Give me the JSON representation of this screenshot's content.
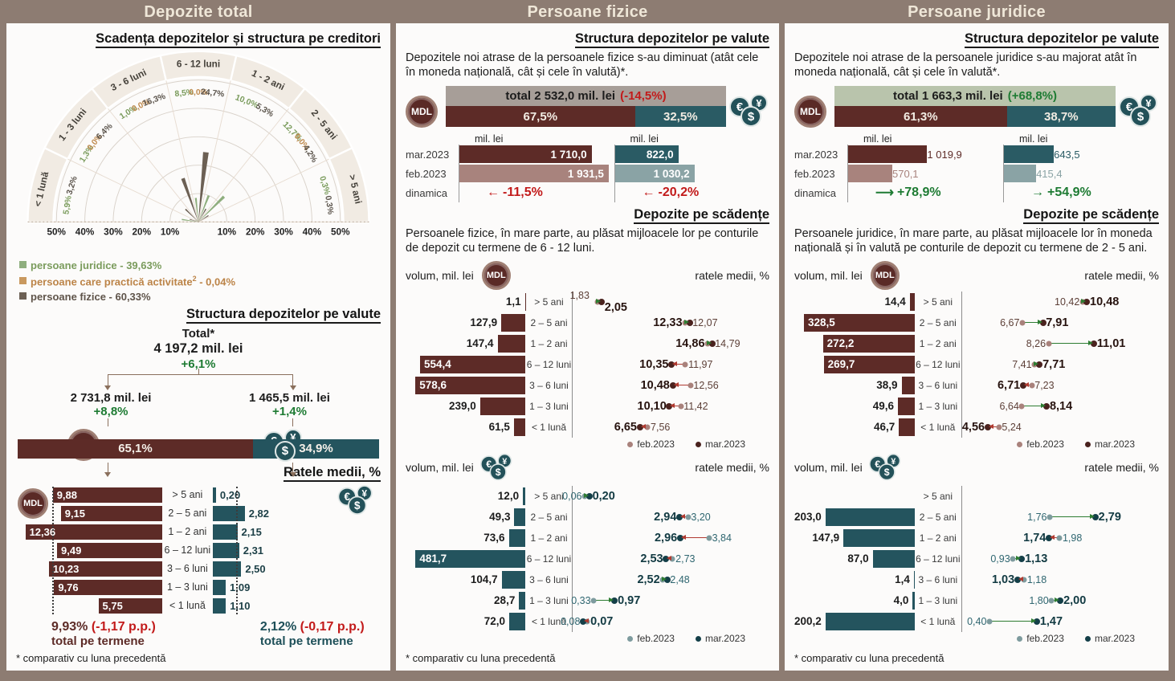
{
  "headers": [
    "Depozite total",
    "Persoane fizice",
    "Persoane juridice"
  ],
  "footnote": "* comparativ cu luna precedentă",
  "legend_months": {
    "feb": "feb.2023",
    "mar": "mar.2023"
  },
  "labels": {
    "volume": "volum, mil. lei",
    "rates": "ratele medii, %",
    "unit": "mil. lei",
    "total_term": "total pe termene"
  },
  "icons": {
    "mdl": "MDL",
    "eur": "€",
    "yen": "¥",
    "usd": "$"
  },
  "panel1": {
    "title_radial": "Scadența depozitelor și structura pe creditori",
    "title_valute": "Structura depozitelor pe valute",
    "title_rates": "Ratele medii, %"
  },
  "panel2": {
    "title_valute": "Structura depozitelor pe valute",
    "intro": "Depozitele noi atrase de la persoanele fizice s-au diminuat (atât cele în moneda națională, cât și cele în valută)*.",
    "title_maturity": "Depozite pe scădențe",
    "maturity_intro": "Persoanele fizice, în mare parte, au plăsat mijloacele lor pe conturile de depozit cu termene de 6 - 12 luni."
  },
  "panel3": {
    "title_valute": "Structura depozitelor pe valute",
    "intro": "Depozitele noi atrase de la persoanele juridice s-au majorat atât în moneda națională, cât și cele în valută*.",
    "title_maturity": "Depozite pe scădențe",
    "maturity_intro": "Persoanele juridice, în mare parte, au plăsat mijloacele lor în moneda națională și în valută pe conturile de depozit cu termene de 2 - 5 ani."
  },
  "chart_data": [
    {
      "id": "maturity-structure-radial",
      "type": "polar-bar",
      "title": "Scadența depozitelor și structura pe creditori",
      "categories": [
        "< 1 lună",
        "1 - 3 luni",
        "3 - 6 luni",
        "6 - 12 luni",
        "1 - 2 ani",
        "2 - 5 ani",
        "> 5 ani"
      ],
      "rmax": 50,
      "axis_ticks": [
        "50%",
        "40%",
        "30%",
        "20%",
        "10%"
      ],
      "series": [
        {
          "name": "persoane juridice",
          "color": "#8fae7e",
          "label_color": "#7b9c5d",
          "values": [
            5.9,
            1.3,
            1.0,
            8.5,
            10.0,
            12.7,
            0.3
          ],
          "labels": [
            "5,9%",
            "1,3%",
            "1,0%",
            "8,5%",
            "10,0%",
            "12,7%",
            "0,3%"
          ]
        },
        {
          "name": "persoane care practică activitate",
          "color": "#c9995f",
          "label_color": "#c08b4f",
          "values": [
            null,
            0.0,
            0.0,
            0.0,
            null,
            0.0,
            null
          ],
          "labels": [
            null,
            "0,0%",
            "0,0%",
            "0,0%",
            null,
            "0,0%",
            null
          ]
        },
        {
          "name": "persoane fizice",
          "color": "#6c6054",
          "label_color": "#5b544c",
          "values": [
            3.2,
            6.4,
            16.3,
            24.7,
            5.3,
            4.2,
            0.3
          ],
          "labels": [
            "3,2%",
            "6,4%",
            "16,3%",
            "24,7%",
            "5,3%",
            "4,2%",
            "0,3%"
          ]
        }
      ],
      "legend": [
        {
          "color": "#8fae7e",
          "text_color": "#7b9c5d",
          "text": "persoane juridice - 39,63%"
        },
        {
          "color": "#c9995f",
          "text_color": "#bc8448",
          "text": "persoane care practică activitate",
          "sup": "2",
          "suffix": " - 0,04%"
        },
        {
          "color": "#6c6054",
          "text_color": "#5f544a",
          "text": "persoane fizice - 60,33%"
        }
      ]
    },
    {
      "id": "total-structure-tree",
      "type": "tree",
      "total_title": "Total*",
      "total_value": "4 197,2 mil. lei",
      "total_delta": "+6,1%",
      "left": {
        "value": "2 731,8 mil. lei",
        "delta": "+8,8%",
        "label": "în lei",
        "share": "65,1%",
        "share_pct": 65.1,
        "color": "#5d2b27"
      },
      "right": {
        "value": "1 465,5 mil. lei",
        "delta": "+1,4%",
        "label": "în valută",
        "share": "34,9%",
        "share_pct": 34.9,
        "color": "#24545e"
      }
    },
    {
      "id": "avg-rates-total",
      "type": "tornado",
      "scale_max": 13.2,
      "categories": [
        "> 5 ani",
        "2 – 5 ani",
        "1 – 2 ani",
        "6 – 12 luni",
        "3 – 6 luni",
        "1 – 3 luni",
        "< 1 lună"
      ],
      "left": {
        "color": "#5d2b27",
        "values": [
          9.88,
          9.15,
          12.36,
          9.49,
          10.23,
          9.76,
          5.75
        ],
        "labels": [
          "9,88",
          "9,15",
          "12,36",
          "9,49",
          "10,23",
          "9,76",
          "5,75"
        ],
        "ref": 9.93,
        "total": "9,93%",
        "total_delta": "(-1,17 p.p.)",
        "total_caption": "total pe termene",
        "total_color": "#5d2b27"
      },
      "right": {
        "color": "#24545e",
        "values": [
          0.2,
          2.82,
          2.15,
          2.31,
          2.5,
          1.09,
          1.1
        ],
        "labels": [
          "0,20",
          "2,82",
          "2,15",
          "2,31",
          "2,50",
          "1,09",
          "1,10"
        ],
        "ref": 2.12,
        "total": "2,12%",
        "total_delta": "(-0,17 p.p.)",
        "total_caption": "total pe termene",
        "total_color": "#1d4f58"
      }
    },
    {
      "id": "pf-new-deposits",
      "type": "grouped-bar",
      "total_label": "total 2 532,0 mil. lei",
      "total_delta": "(-14,5%)",
      "delta_color": "#c21a1a",
      "total_bar_color": "#a79e98",
      "split": {
        "mdl_label": "67,5%",
        "mdl_pct": 67.5,
        "val_label": "32,5%",
        "val_pct": 32.5
      },
      "unit": "mil. lei",
      "row_labels": [
        "mar.2023",
        "feb.2023",
        "dinamica"
      ],
      "labels_inside": true,
      "scale_max": 2000,
      "mdl": {
        "mar": 1710.0,
        "mar_label": "1 710,0",
        "mar_color": "#5d2b27",
        "feb": 1931.5,
        "feb_label": "1 931,5",
        "feb_color": "#a8837d",
        "dyn": "-11,5%",
        "dyn_arrow": "←",
        "dyn_color": "#c21a1a"
      },
      "val": {
        "mar": 822.0,
        "mar_label": "822,0",
        "mar_color": "#2a5b64",
        "feb": 1030.2,
        "feb_label": "1 030,2",
        "feb_color": "#8aa3a5",
        "dyn": "-20,2%",
        "dyn_arrow": "←",
        "dyn_color": "#c21a1a"
      }
    },
    {
      "id": "pf-maturity-mdl",
      "type": "bar-dumbbell",
      "bar_color": "#5d2b27",
      "dot_feb": "#a9827c",
      "dot_mar": "#4a221e",
      "feb_text": "#5d4038",
      "mar_text": "#27130f",
      "vmax": 630,
      "rmin": 0,
      "rmax": 16.5,
      "rows": [
        {
          "cat": "> 5 ani",
          "vol": 1.1,
          "vol_label": "1,1",
          "inside": false,
          "feb": 1.83,
          "feb_label": "1,83",
          "mar": 2.05,
          "mar_label": "2,05",
          "dir": "up",
          "mar_side": "right",
          "stacked": true
        },
        {
          "cat": "2 – 5 ani",
          "vol": 127.9,
          "vol_label": "127,9",
          "inside": false,
          "feb": 12.07,
          "feb_label": "12,07",
          "mar": 12.33,
          "mar_label": "12,33",
          "dir": "up",
          "mar_side": "left"
        },
        {
          "cat": "1 – 2 ani",
          "vol": 147.4,
          "vol_label": "147,4",
          "inside": false,
          "feb": 14.79,
          "feb_label": "14,79",
          "mar": 14.86,
          "mar_label": "14,86",
          "dir": "up",
          "mar_side": "left"
        },
        {
          "cat": "6 – 12 luni",
          "vol": 554.4,
          "vol_label": "554,4",
          "inside": true,
          "feb": 11.97,
          "feb_label": "11,97",
          "mar": 10.35,
          "mar_label": "10,35",
          "dir": "down",
          "mar_side": "left"
        },
        {
          "cat": "3 – 6 luni",
          "vol": 578.6,
          "vol_label": "578,6",
          "inside": true,
          "feb": 12.56,
          "feb_label": "12,56",
          "mar": 10.48,
          "mar_label": "10,48",
          "dir": "down",
          "mar_side": "left"
        },
        {
          "cat": "1 – 3 luni",
          "vol": 239.0,
          "vol_label": "239,0",
          "inside": false,
          "feb": 11.42,
          "feb_label": "11,42",
          "mar": 10.1,
          "mar_label": "10,10",
          "dir": "down",
          "mar_side": "left"
        },
        {
          "cat": "< 1 lună",
          "vol": 61.5,
          "vol_label": "61,5",
          "inside": false,
          "feb": 7.56,
          "feb_label": "7,56",
          "mar": 6.65,
          "mar_label": "6,65",
          "dir": "down",
          "mar_side": "left"
        }
      ]
    },
    {
      "id": "pf-maturity-val",
      "type": "bar-dumbbell",
      "bar_color": "#24545e",
      "dot_feb": "#7e9b9e",
      "dot_mar": "#143f48",
      "feb_text": "#2f6670",
      "mar_text": "#123a42",
      "vmax": 525,
      "rmin": 0,
      "rmax": 4.3,
      "rows": [
        {
          "cat": "> 5 ani",
          "vol": 12.0,
          "vol_label": "12,0",
          "inside": false,
          "feb": 0.06,
          "feb_label": "0,06",
          "mar": 0.2,
          "mar_label": "0,20",
          "dir": "up",
          "mar_side": "right"
        },
        {
          "cat": "2 – 5 ani",
          "vol": 49.3,
          "vol_label": "49,3",
          "inside": false,
          "feb": 3.2,
          "feb_label": "3,20",
          "mar": 2.94,
          "mar_label": "2,94",
          "dir": "down",
          "mar_side": "left"
        },
        {
          "cat": "1 – 2 ani",
          "vol": 73.6,
          "vol_label": "73,6",
          "inside": false,
          "feb": 3.84,
          "feb_label": "3,84",
          "mar": 2.96,
          "mar_label": "2,96",
          "dir": "down",
          "mar_side": "left"
        },
        {
          "cat": "6 – 12 luni",
          "vol": 481.7,
          "vol_label": "481,7",
          "inside": true,
          "feb": 2.73,
          "feb_label": "2,73",
          "mar": 2.53,
          "mar_label": "2,53",
          "dir": "down",
          "mar_side": "left"
        },
        {
          "cat": "3 – 6 luni",
          "vol": 104.7,
          "vol_label": "104,7",
          "inside": false,
          "feb": 2.48,
          "feb_label": "2,48",
          "mar": 2.52,
          "mar_label": "2,52",
          "dir": "up",
          "mar_side": "left"
        },
        {
          "cat": "1 – 3 luni",
          "vol": 28.7,
          "vol_label": "28,7",
          "inside": false,
          "feb": 0.33,
          "feb_label": "0,33",
          "mar": 0.97,
          "mar_label": "0,97",
          "dir": "up",
          "mar_side": "right"
        },
        {
          "cat": "< 1 lună",
          "vol": 72.0,
          "vol_label": "72,0",
          "inside": false,
          "feb": 0.08,
          "feb_label": "0,08",
          "mar": 0.07,
          "mar_label": "0,07",
          "dir": "down",
          "mar_side": "right"
        }
      ]
    },
    {
      "id": "pj-new-deposits",
      "type": "grouped-bar",
      "total_label": "total 1 663,3 mil. lei",
      "total_delta": "(+68,8%)",
      "delta_color": "#1e7b33",
      "total_bar_color": "#b9c4ac",
      "split": {
        "mdl_label": "61,3%",
        "mdl_pct": 61.3,
        "val_label": "38,7%",
        "val_pct": 38.7
      },
      "unit": "mil. lei",
      "row_labels": [
        "mar.2023",
        "feb.2023",
        "dinamica"
      ],
      "labels_inside": false,
      "scale_max": 2000,
      "mdl": {
        "mar": 1019.9,
        "mar_label": "1 019,9",
        "mar_color": "#5d2b27",
        "feb": 570.1,
        "feb_label": "570,1",
        "feb_color": "#a8837d",
        "dyn": "+78,9%",
        "dyn_arrow": "⟶",
        "dyn_color": "#1e7b33"
      },
      "val": {
        "mar": 643.5,
        "mar_label": "643,5",
        "mar_color": "#2a5b64",
        "feb": 415.4,
        "feb_label": "415,4",
        "feb_color": "#8aa3a5",
        "dyn": "+54,9%",
        "dyn_arrow": "→",
        "dyn_color": "#1e7b33"
      }
    },
    {
      "id": "pj-maturity-mdl",
      "type": "bar-dumbbell",
      "bar_color": "#5d2b27",
      "dot_feb": "#a9827c",
      "dot_mar": "#4a221e",
      "feb_text": "#5d4038",
      "mar_text": "#27130f",
      "vmax": 357,
      "rmin": 3.6,
      "rmax": 12.2,
      "rows": [
        {
          "cat": "> 5 ani",
          "vol": 14.4,
          "vol_label": "14,4",
          "inside": false,
          "feb": 10.42,
          "feb_label": "10,42",
          "mar": 10.48,
          "mar_label": "10,48",
          "dir": "up",
          "mar_side": "right"
        },
        {
          "cat": "2 – 5 ani",
          "vol": 328.5,
          "vol_label": "328,5",
          "inside": true,
          "feb": 6.67,
          "feb_label": "6,67",
          "mar": 7.91,
          "mar_label": "7,91",
          "dir": "up",
          "mar_side": "right"
        },
        {
          "cat": "1 – 2 ani",
          "vol": 272.2,
          "vol_label": "272,2",
          "inside": true,
          "feb": 8.26,
          "feb_label": "8,26",
          "mar": 11.01,
          "mar_label": "11,01",
          "dir": "up",
          "mar_side": "right"
        },
        {
          "cat": "6 – 12 luni",
          "vol": 269.7,
          "vol_label": "269,7",
          "inside": true,
          "feb": 7.41,
          "feb_label": "7,41",
          "mar": 7.71,
          "mar_label": "7,71",
          "dir": "up",
          "mar_side": "right"
        },
        {
          "cat": "3 – 6 luni",
          "vol": 38.9,
          "vol_label": "38,9",
          "inside": false,
          "feb": 7.23,
          "feb_label": "7,23",
          "mar": 6.71,
          "mar_label": "6,71",
          "dir": "down",
          "mar_side": "left"
        },
        {
          "cat": "1 – 3 luni",
          "vol": 49.6,
          "vol_label": "49,6",
          "inside": false,
          "feb": 6.64,
          "feb_label": "6,64",
          "mar": 8.14,
          "mar_label": "8,14",
          "dir": "up",
          "mar_side": "right"
        },
        {
          "cat": "< 1 lună",
          "vol": 46.7,
          "vol_label": "46,7",
          "inside": false,
          "feb": 5.24,
          "feb_label": "5,24",
          "mar": 4.56,
          "mar_label": "4,56",
          "dir": "down",
          "mar_side": "left"
        }
      ]
    },
    {
      "id": "pj-maturity-val",
      "type": "bar-dumbbell",
      "bar_color": "#24545e",
      "dot_feb": "#7e9b9e",
      "dot_mar": "#143f48",
      "feb_text": "#2f6670",
      "mar_text": "#123a42",
      "vmax": 250,
      "rmin": 0,
      "rmax": 3.2,
      "rows": [
        {
          "cat": "> 5 ani",
          "empty": true
        },
        {
          "cat": "2 – 5 ani",
          "vol": 203.0,
          "vol_label": "203,0",
          "inside": false,
          "feb": 1.76,
          "feb_label": "1,76",
          "mar": 2.79,
          "mar_label": "2,79",
          "dir": "up",
          "mar_side": "right"
        },
        {
          "cat": "1 – 2 ani",
          "vol": 147.9,
          "vol_label": "147,9",
          "inside": false,
          "feb": 1.98,
          "feb_label": "1,98",
          "mar": 1.74,
          "mar_label": "1,74",
          "dir": "down",
          "mar_side": "left"
        },
        {
          "cat": "6 – 12 luni",
          "vol": 87.0,
          "vol_label": "87,0",
          "inside": false,
          "feb": 0.93,
          "feb_label": "0,93",
          "mar": 1.13,
          "mar_label": "1,13",
          "dir": "up",
          "mar_side": "right"
        },
        {
          "cat": "3 – 6 luni",
          "vol": 1.4,
          "vol_label": "1,4",
          "inside": false,
          "feb": 1.18,
          "feb_label": "1,18",
          "mar": 1.03,
          "mar_label": "1,03",
          "dir": "down",
          "mar_side": "left"
        },
        {
          "cat": "1 – 3 luni",
          "vol": 4.0,
          "vol_label": "4,0",
          "inside": false,
          "feb": 1.8,
          "feb_label": "1,80",
          "mar": 2.0,
          "mar_label": "2,00",
          "dir": "up",
          "mar_side": "right"
        },
        {
          "cat": "< 1 lună",
          "vol": 200.2,
          "vol_label": "200,2",
          "inside": false,
          "feb": 0.4,
          "feb_label": "0,40",
          "mar": 1.47,
          "mar_label": "1,47",
          "dir": "up",
          "mar_side": "right"
        }
      ]
    }
  ]
}
